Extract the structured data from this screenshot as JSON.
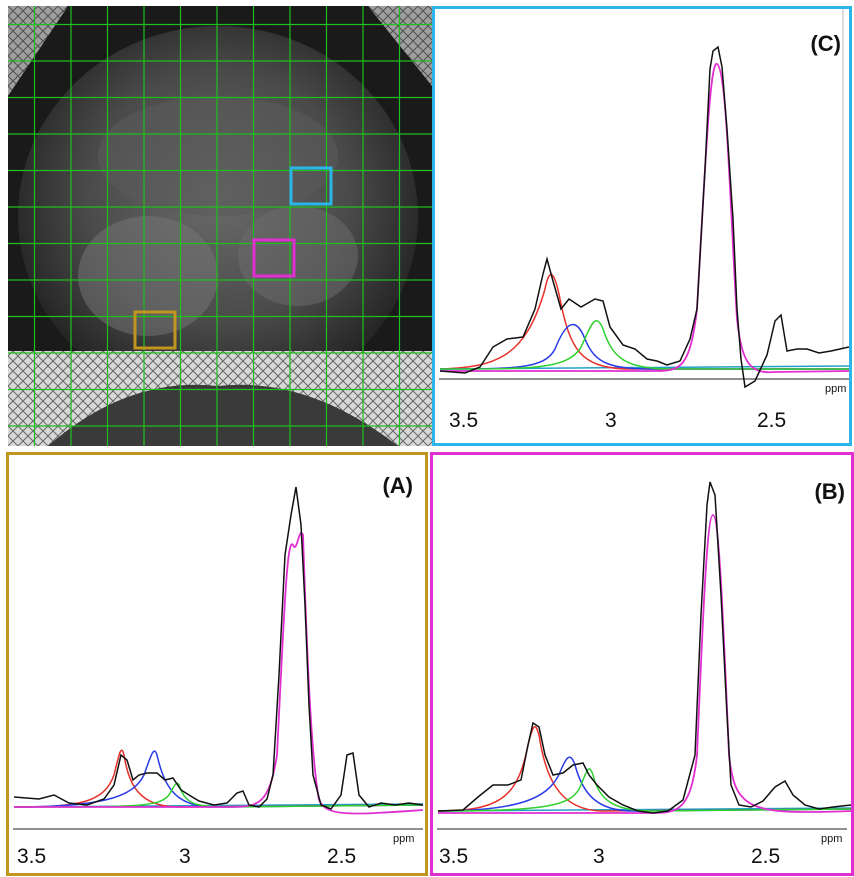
{
  "figure": {
    "panels": [
      {
        "id": "C",
        "label": "(C)",
        "frame_color": "#2bb5e8"
      },
      {
        "id": "A",
        "label": "(A)",
        "frame_color": "#c0961e"
      },
      {
        "id": "B",
        "label": "(B)",
        "frame_color": "#e02fd0"
      }
    ],
    "axis": {
      "unit": "ppm",
      "ticks": [
        "3.5",
        "3",
        "2.5"
      ]
    },
    "mri_grid": {
      "line_color": "#1fbf1f",
      "voxel_boxes": [
        {
          "color": "#2bb5e8",
          "links_to": "C"
        },
        {
          "color": "#e02fd0",
          "links_to": "B"
        },
        {
          "color": "#c0961e",
          "links_to": "A"
        }
      ]
    },
    "fit_colors": {
      "data": "#111111",
      "red": "#e8302a",
      "blue": "#2a3be8",
      "green": "#2fd12f",
      "magenta": "#e02fd0",
      "baseline": "#22a0c8"
    }
  }
}
